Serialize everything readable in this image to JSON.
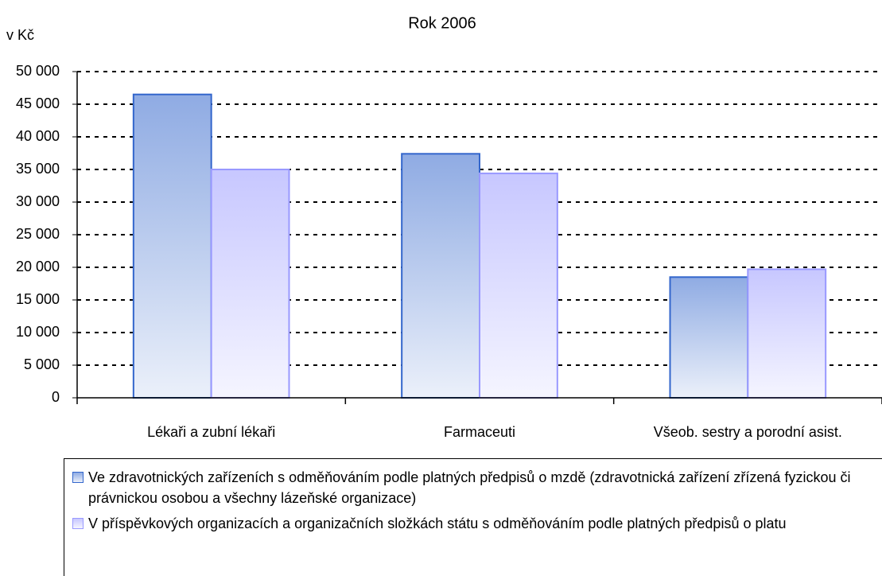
{
  "chart_data": {
    "type": "bar",
    "title": "Rok 2006",
    "y_label": "v Kč",
    "categories": [
      "Lékaři a zubní lékaři",
      "Farmaceuti",
      "Všeob. sestry a porodní asist."
    ],
    "series": [
      {
        "name": "Ve zdravotnických zařízeních s odměňováním podle platných předpisů o mzdě (zdravotnická zařízení zřízená fyzickou či právnickou osobou a všechny lázeňské organizace)",
        "color": "#3366cc",
        "values": [
          46500,
          37400,
          18500
        ]
      },
      {
        "name": "V příspěvkových organizacích a organizačních složkách státu s odměňováním podle platných předpisů o platu",
        "color": "#9999ff",
        "values": [
          35000,
          34400,
          19700
        ]
      }
    ],
    "ylim": [
      0,
      50000
    ],
    "yticks": [
      0,
      {
        "value": 5000,
        "label": "5 000"
      },
      {
        "value": 10000,
        "label": "10 000"
      },
      {
        "value": 15000,
        "label": "15 000"
      },
      {
        "value": 20000,
        "label": "20 000"
      },
      {
        "value": 25000,
        "label": "25 000"
      },
      {
        "value": 30000,
        "label": "30 000"
      },
      {
        "value": 35000,
        "label": "35 000"
      },
      {
        "value": 40000,
        "label": "40 000"
      },
      {
        "value": 45000,
        "label": "45 000"
      },
      {
        "value": 50000,
        "label": "50 000"
      }
    ],
    "grid": true
  }
}
